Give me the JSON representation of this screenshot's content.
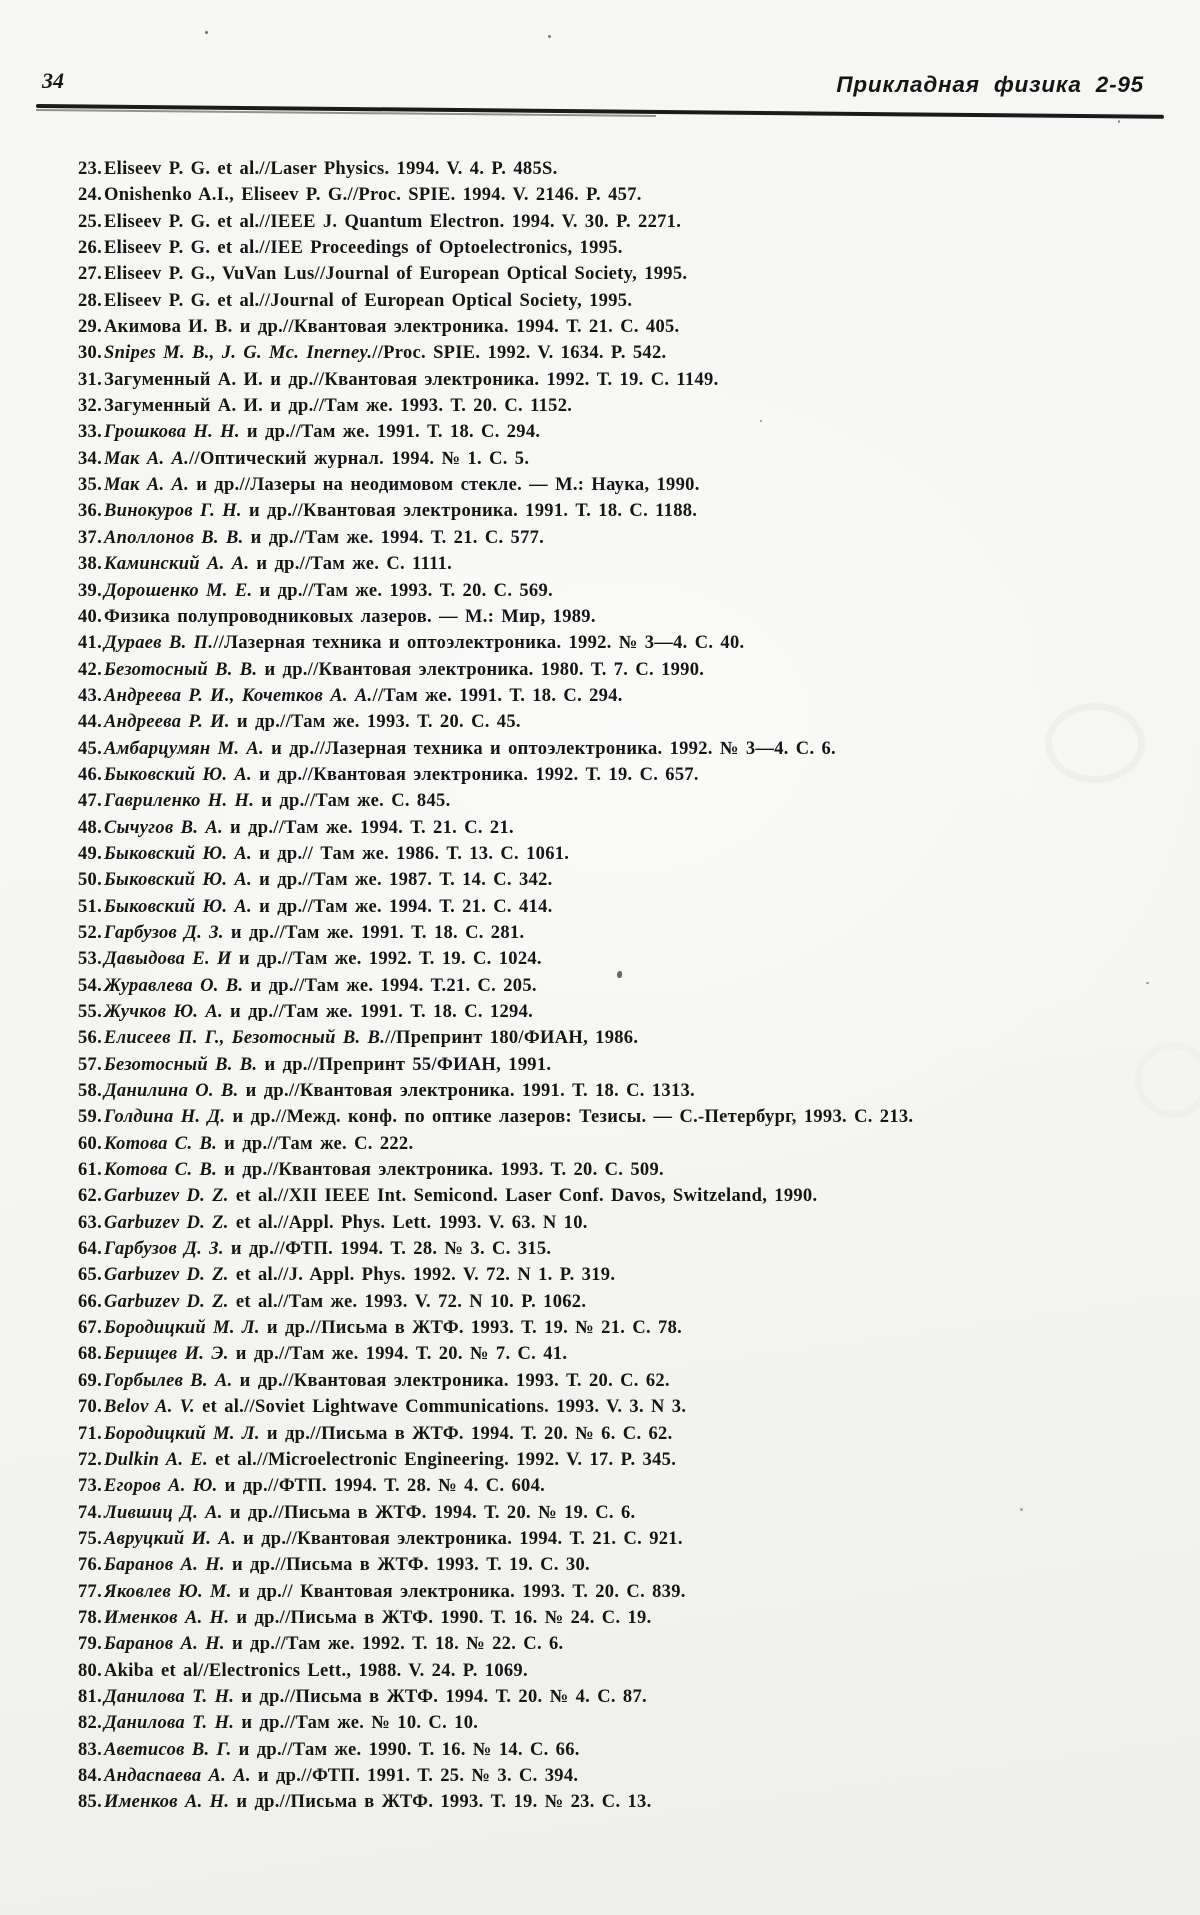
{
  "header": {
    "page_number": "34",
    "journal_title": "Прикладная физика 2-95"
  },
  "references": [
    {
      "num": "23.",
      "author": "Eliseev P. G.",
      "author_italic": false,
      "text": " et al.//Laser Physics. 1994. V. 4. P. 485S."
    },
    {
      "num": "24.",
      "author": "Onishenko A.I., Eliseev P. G.",
      "author_italic": false,
      "text": "//Proc. SPIE. 1994. V. 2146. P. 457."
    },
    {
      "num": "25.",
      "author": "Eliseev P. G.",
      "author_italic": false,
      "text": " et al.//IEEE J. Quantum Electron. 1994. V. 30. P. 2271."
    },
    {
      "num": "26.",
      "author": "Eliseev P. G.",
      "author_italic": false,
      "text": " et al.//IEE Proceedings of Optoelectronics, 1995."
    },
    {
      "num": "27.",
      "author": "Eliseev P. G., VuVan Lus",
      "author_italic": false,
      "text": "//Journal of European Optical Society, 1995."
    },
    {
      "num": "28.",
      "author": "Eliseev P. G.",
      "author_italic": false,
      "text": " et al.//Journal of European Optical Society, 1995."
    },
    {
      "num": "29.",
      "author": "Акимова И. В.",
      "author_italic": false,
      "text": " и др.//Квантовая электроника. 1994. Т. 21. С. 405."
    },
    {
      "num": "30.",
      "author": "Snipes M. B., J. G. Mc. Inerney.",
      "author_italic": true,
      "text": "//Proc. SPIE. 1992. V. 1634. P. 542."
    },
    {
      "num": "31.",
      "author": "Загуменный А. И.",
      "author_italic": false,
      "text": " и др.//Квантовая электроника. 1992. Т. 19. С. 1149."
    },
    {
      "num": "32.",
      "author": "Загуменный А. И.",
      "author_italic": false,
      "text": " и др.//Там же. 1993. Т. 20. С. 1152."
    },
    {
      "num": "33.",
      "author": "Грошкова Н. Н.",
      "author_italic": true,
      "text": " и др.//Там же. 1991. Т. 18. С. 294."
    },
    {
      "num": "34.",
      "author": "Мак А. А.",
      "author_italic": true,
      "text": "//Оптический журнал. 1994. № 1. С. 5."
    },
    {
      "num": "35.",
      "author": "Мак А. А.",
      "author_italic": true,
      "text": " и др.//Лазеры на неодимовом стекле. — М.: Наука, 1990."
    },
    {
      "num": "36.",
      "author": "Винокуров Г. Н.",
      "author_italic": true,
      "text": " и др.//Квантовая электроника. 1991. Т. 18. С. 1188."
    },
    {
      "num": "37.",
      "author": "Аполлонов В. В.",
      "author_italic": true,
      "text": " и др.//Там же. 1994. Т. 21. С. 577."
    },
    {
      "num": "38.",
      "author": "Каминский А. А.",
      "author_italic": true,
      "text": " и др.//Там же. С. 1111."
    },
    {
      "num": "39.",
      "author": "Дорошенко М. Е.",
      "author_italic": true,
      "text": " и др.//Там же. 1993. Т. 20. С. 569."
    },
    {
      "num": "40.",
      "author": "",
      "author_italic": false,
      "text": "Физика полупроводниковых лазеров. — М.: Мир, 1989."
    },
    {
      "num": "41.",
      "author": "Дураев В. П.",
      "author_italic": true,
      "text": "//Лазерная техника  и оптоэлектроника. 1992. № 3—4. С. 40."
    },
    {
      "num": "42.",
      "author": "Безотосный В. В.",
      "author_italic": true,
      "text": " и др.//Квантовая электроника. 1980. Т. 7. С. 1990."
    },
    {
      "num": "43.",
      "author": "Андреева Р. И., Кочетков А. А.",
      "author_italic": true,
      "text": "//Там же. 1991. Т. 18. С. 294."
    },
    {
      "num": "44.",
      "author": "Андреева Р. И.",
      "author_italic": true,
      "text": " и др.//Там же. 1993. Т. 20. С. 45."
    },
    {
      "num": "45.",
      "author": "Амбарцумян М. А.",
      "author_italic": true,
      "text": " и др.//Лазерная техника и оптоэлектроника. 1992. № 3—4. С. 6."
    },
    {
      "num": "46.",
      "author": "Быковский Ю. А.",
      "author_italic": true,
      "text": " и др.//Квантовая электроника. 1992. Т. 19. С. 657."
    },
    {
      "num": "47.",
      "author": "Гавриленко Н. Н.",
      "author_italic": true,
      "text": " и др.//Там же. С. 845."
    },
    {
      "num": "48.",
      "author": "Сычугов В. А.",
      "author_italic": true,
      "text": " и др.//Там же. 1994. Т. 21. С. 21."
    },
    {
      "num": "49.",
      "author": "Быковский Ю. А.",
      "author_italic": true,
      "text": " и др.// Там же. 1986. Т. 13. С. 1061."
    },
    {
      "num": "50.",
      "author": "Быковский Ю. А.",
      "author_italic": true,
      "text": " и др.//Там же. 1987. Т. 14. С. 342."
    },
    {
      "num": "51.",
      "author": "Быковский Ю. А.",
      "author_italic": true,
      "text": " и др.//Там же. 1994. Т. 21. С. 414."
    },
    {
      "num": "52.",
      "author": "Гарбузов Д. З.",
      "author_italic": true,
      "text": " и др.//Там же. 1991. Т. 18. С. 281."
    },
    {
      "num": "53.",
      "author": "Давыдова Е. И",
      "author_italic": true,
      "text": " и др.//Там же. 1992. Т. 19. С. 1024."
    },
    {
      "num": "54.",
      "author": "Журавлева О. В.",
      "author_italic": true,
      "text": " и др.//Там же. 1994. Т.21. С. 205."
    },
    {
      "num": "55.",
      "author": "Жучков Ю. А.",
      "author_italic": true,
      "text": " и др.//Там же. 1991. Т. 18. С. 1294."
    },
    {
      "num": "56.",
      "author": "Елисеев П. Г., Безотосный В. В.",
      "author_italic": true,
      "text": "//Препринт 180/ФИАН, 1986."
    },
    {
      "num": "57.",
      "author": "Безотосный В. В.",
      "author_italic": true,
      "text": " и др.//Препринт 55/ФИАН, 1991."
    },
    {
      "num": "58.",
      "author": "Данилина О. В.",
      "author_italic": true,
      "text": " и др.//Квантовая электроника. 1991. Т. 18. С. 1313."
    },
    {
      "num": "59.",
      "author": "Голдина Н. Д.",
      "author_italic": true,
      "text": " и др.//Межд. конф. по оптике лазеров: Тезисы. — С.-Петербург, 1993. С. 213."
    },
    {
      "num": "60.",
      "author": "Котова С. В.",
      "author_italic": true,
      "text": " и др.//Там же. С. 222."
    },
    {
      "num": "61.",
      "author": "Котова С. В.",
      "author_italic": true,
      "text": " и др.//Квантовая электроника. 1993. Т. 20. С. 509."
    },
    {
      "num": "62.",
      "author": "Garbuzev D. Z.",
      "author_italic": true,
      "text": " et al.//XII IEEE Int. Semicond. Laser Conf. Davos, Switzeland, 1990."
    },
    {
      "num": "63.",
      "author": "Garbuzev D. Z.",
      "author_italic": true,
      "text": " et al.//Appl. Phys. Lett. 1993. V. 63. N 10."
    },
    {
      "num": "64.",
      "author": "Гарбузов Д. З.",
      "author_italic": true,
      "text": " и др.//ФТП. 1994. Т. 28. № 3. С. 315."
    },
    {
      "num": "65.",
      "author": "Garbuzev D. Z.",
      "author_italic": true,
      "text": " et al.//J. Appl. Phys. 1992. V. 72. N 1. P. 319."
    },
    {
      "num": "66.",
      "author": "Garbuzev D. Z.",
      "author_italic": true,
      "text": " et al.//Там же. 1993. V. 72. N 10. P. 1062."
    },
    {
      "num": "67.",
      "author": "Бородицкий М. Л.",
      "author_italic": true,
      "text": " и др.//Письма в ЖТФ. 1993. Т. 19. № 21. С. 78."
    },
    {
      "num": "68.",
      "author": "Берищев И. Э.",
      "author_italic": true,
      "text": " и др.//Там же. 1994. Т. 20. № 7. С. 41."
    },
    {
      "num": "69.",
      "author": "Горбылев В. А.",
      "author_italic": true,
      "text": " и др.//Квантовая электроника. 1993. Т. 20. С. 62."
    },
    {
      "num": "70.",
      "author": "Belov A. V.",
      "author_italic": true,
      "text": " et al.//Soviet Lightwave Communications. 1993. V. 3. N 3."
    },
    {
      "num": "71.",
      "author": "Бородицкий М. Л.",
      "author_italic": true,
      "text": " и др.//Письма в ЖТФ. 1994. Т. 20. № 6. С. 62."
    },
    {
      "num": "72.",
      "author": "Dulkin A. E.",
      "author_italic": true,
      "text": " et al.//Microelectronic Engineering. 1992. V. 17. P. 345."
    },
    {
      "num": "73.",
      "author": "Егоров А. Ю.",
      "author_italic": true,
      "text": " и др.//ФТП. 1994. Т. 28. № 4. С. 604."
    },
    {
      "num": "74.",
      "author": "Лившиц Д. А.",
      "author_italic": true,
      "text": " и др.//Письма в ЖТФ. 1994. Т. 20. № 19. С. 6."
    },
    {
      "num": "75.",
      "author": "Авруцкий И. А.",
      "author_italic": true,
      "text": " и др.//Квантовая электроника. 1994. Т. 21. С. 921."
    },
    {
      "num": "76.",
      "author": "Баранов А. Н.",
      "author_italic": true,
      "text": " и др.//Письма в ЖТФ. 1993. Т. 19. С. 30."
    },
    {
      "num": "77.",
      "author": "Яковлев Ю. М.",
      "author_italic": true,
      "text": " и др.// Квантовая электроника. 1993. Т. 20. С. 839."
    },
    {
      "num": "78.",
      "author": "Именков А. Н.",
      "author_italic": true,
      "text": " и др.//Письма в ЖТФ. 1990. Т. 16. № 24. С. 19."
    },
    {
      "num": "79.",
      "author": "Баранов А. Н.",
      "author_italic": true,
      "text": " и др.//Там же. 1992. Т. 18. № 22. С. 6."
    },
    {
      "num": "80.",
      "author": "Akiba",
      "author_italic": false,
      "text": " et al//Electronics Lett., 1988. V. 24. P. 1069."
    },
    {
      "num": "81.",
      "author": "Данилова Т. Н.",
      "author_italic": true,
      "text": " и др.//Письма в ЖТФ. 1994. Т. 20. № 4. С. 87."
    },
    {
      "num": "82.",
      "author": "Данилова Т. Н.",
      "author_italic": true,
      "text": " и др.//Там же. № 10. С. 10."
    },
    {
      "num": "83.",
      "author": "Аветисов В. Г.",
      "author_italic": true,
      "text": " и др.//Там же. 1990. Т. 16. № 14. С. 66."
    },
    {
      "num": "84.",
      "author": "Андаспаева А. А.",
      "author_italic": true,
      "text": " и др.//ФТП. 1991. Т. 25. № 3. С. 394."
    },
    {
      "num": "85.",
      "author": "Именков А. Н.",
      "author_italic": true,
      "text": " и др.//Письма в ЖТФ. 1993. Т. 19. № 23. С. 13."
    }
  ]
}
